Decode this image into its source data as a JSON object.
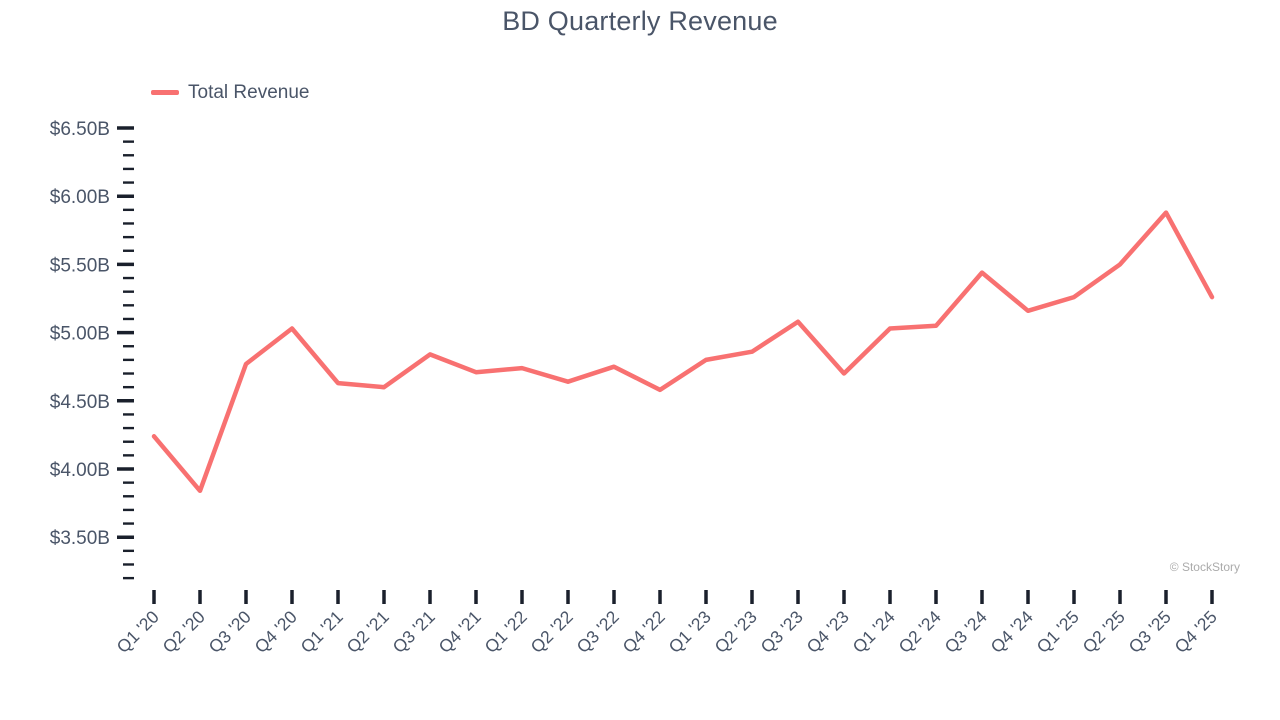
{
  "title": "BD Quarterly Revenue",
  "legend": {
    "label": "Total Revenue"
  },
  "watermark": "© StockStory",
  "colors": {
    "line": "#F87171",
    "text": "#4A5568",
    "tick": "#1A202C",
    "watermark": "#ABABAB"
  },
  "chart_data": {
    "type": "line",
    "title": "BD Quarterly Revenue",
    "unit": "$ billions",
    "grid": false,
    "legend_position": "top-left",
    "ylim": [
      3.2,
      6.6
    ],
    "y_axis": {
      "minor_step": 0.1,
      "majors": [
        {
          "value": 6.5,
          "label": "$6.50B"
        },
        {
          "value": 6.0,
          "label": "$6.00B"
        },
        {
          "value": 5.5,
          "label": "$5.50B"
        },
        {
          "value": 5.0,
          "label": "$5.00B"
        },
        {
          "value": 4.5,
          "label": "$4.50B"
        },
        {
          "value": 4.0,
          "label": "$4.00B"
        },
        {
          "value": 3.5,
          "label": "$3.50B"
        }
      ]
    },
    "categories": [
      "Q1 '20",
      "Q2 '20",
      "Q3 '20",
      "Q4 '20",
      "Q1 '21",
      "Q2 '21",
      "Q3 '21",
      "Q4 '21",
      "Q1 '22",
      "Q2 '22",
      "Q3 '22",
      "Q4 '22",
      "Q1 '23",
      "Q2 '23",
      "Q3 '23",
      "Q4 '23",
      "Q1 '24",
      "Q2 '24",
      "Q3 '24",
      "Q4 '24",
      "Q1 '25",
      "Q2 '25",
      "Q3 '25",
      "Q4 '25"
    ],
    "series": [
      {
        "name": "Total Revenue",
        "values": [
          4.24,
          3.84,
          4.77,
          5.03,
          4.63,
          4.6,
          4.84,
          4.71,
          4.74,
          4.64,
          4.75,
          4.58,
          4.8,
          4.86,
          5.08,
          4.7,
          5.03,
          5.05,
          5.44,
          5.16,
          5.26,
          5.5,
          5.88,
          5.26
        ]
      }
    ]
  }
}
